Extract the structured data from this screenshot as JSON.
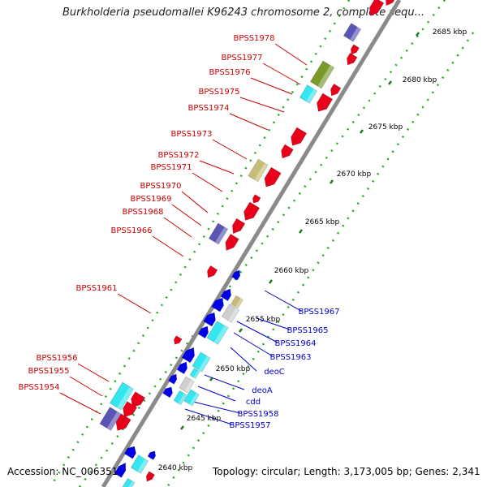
{
  "title": "Burkholderia pseudomallei K96243 chromosome 2, complete sequ...",
  "footer": {
    "accession": "Accession: NC_006351",
    "summary": "Topology: circular; Length: 3,173,005 bp; Genes: 2,341"
  },
  "colors": {
    "forward": "#e8001a",
    "reverse": "#0000e8",
    "cyan": "#33e6f0",
    "olive": "#7a9a28",
    "khaki": "#c8bd78",
    "purple": "#5a55b5",
    "grey": "#cfcfcf",
    "backbone": "#8a8a8a",
    "dot": "#22aa22",
    "forward_label": "#cc0000",
    "reverse_label": "#0000cc"
  },
  "scale_labels": [
    "2685 kbp",
    "2680 kbp",
    "2675 kbp",
    "2670 kbp",
    "2665 kbp",
    "2660 kbp",
    "2655 kbp",
    "2650 kbp",
    "2645 kbp",
    "2640 kbp"
  ],
  "forward_genes": [
    "BPSS1978",
    "BPSS1977",
    "BPSS1976",
    "BPSS1975",
    "BPSS1974",
    "BPSS1973",
    "BPSS1972",
    "BPSS1971",
    "BPSS1970",
    "BPSS1969",
    "BPSS1968",
    "BPSS1966",
    "BPSS1961",
    "BPSS1956",
    "BPSS1955",
    "BPSS1954"
  ],
  "reverse_genes": [
    "BPSS1967",
    "BPSS1965",
    "BPSS1964",
    "BPSS1963",
    "deoC",
    "deoA",
    "cdd",
    "BPSS1958",
    "BPSS1957"
  ]
}
